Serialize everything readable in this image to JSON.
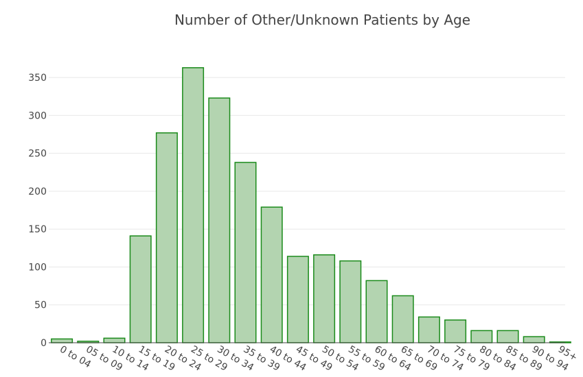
{
  "chart_data": {
    "type": "bar",
    "title": "Number of Other/Unknown Patients by Age",
    "xlabel": "",
    "ylabel": "",
    "categories": [
      "0 to 04",
      "05 to 09",
      "10 to 14",
      "15 to 19",
      "20 to 24",
      "25 to 29",
      "30 to 34",
      "35 to 39",
      "40 to 44",
      "45 to 49",
      "50 to 54",
      "55 to 59",
      "60 to 64",
      "65 to 69",
      "70 to 74",
      "75 to 79",
      "80 to 84",
      "85 to 89",
      "90 to 94",
      "95+"
    ],
    "values": [
      5,
      2,
      6,
      141,
      277,
      363,
      323,
      238,
      179,
      114,
      116,
      108,
      82,
      62,
      34,
      30,
      16,
      16,
      8,
      1
    ],
    "yticks": [
      0,
      50,
      100,
      150,
      200,
      250,
      300,
      350
    ],
    "ylim": [
      0,
      380
    ],
    "grid": true,
    "legend": "none",
    "colors": {
      "bar_fill": "#b3d4b0",
      "bar_stroke": "#1a8a1a",
      "grid": "#e8e8e8",
      "axis_text": "#444444",
      "title": "#444444"
    }
  }
}
